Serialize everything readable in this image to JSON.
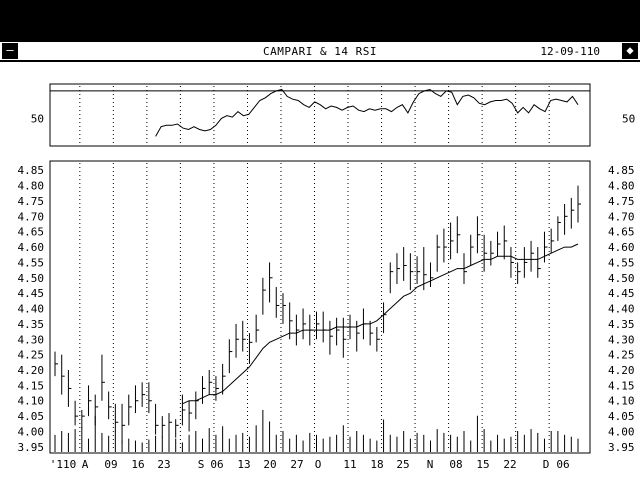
{
  "window": {
    "title": "CAMPARI & 14 RSI",
    "date": "12-09-110",
    "menu_icon": "minus-box-icon",
    "max_icon": "diamond-box-icon"
  },
  "colors": {
    "background": "#ffffff",
    "ink": "#000000",
    "frame": "#000000"
  },
  "chart_data": [
    {
      "type": "line",
      "title": "",
      "ylabel_ticks": [
        "50"
      ],
      "ref_levels": [
        70
      ],
      "series": [
        {
          "values": [
            37,
            44,
            45,
            45,
            46,
            43,
            42,
            44,
            42,
            41,
            42,
            45,
            50,
            52,
            51,
            55,
            52,
            53,
            58,
            63,
            65,
            68,
            70,
            71,
            66,
            64,
            63,
            60,
            58,
            62,
            60,
            57,
            59,
            58,
            56,
            58,
            59,
            56,
            55,
            57,
            56,
            57,
            57,
            55,
            58,
            60,
            54,
            62,
            68,
            70,
            71,
            68,
            66,
            70,
            69,
            60,
            66,
            67,
            65,
            61,
            60,
            62,
            63,
            63,
            64,
            61,
            54,
            58,
            54,
            60,
            57,
            55,
            63,
            64,
            63,
            62,
            66,
            60
          ]
        }
      ]
    },
    {
      "type": "bar",
      "subtype": "ohlc-with-moving-average-and-volume",
      "title": "",
      "yticks": [
        "4.85",
        "4.80",
        "4.75",
        "4.70",
        "4.65",
        "4.60",
        "4.55",
        "4.50",
        "4.45",
        "4.40",
        "4.35",
        "4.30",
        "4.25",
        "4.20",
        "4.15",
        "4.10",
        "4.05",
        "4.00",
        "3.95"
      ],
      "ylim": [
        3.93,
        4.88
      ],
      "xtick_labels": [
        "'110",
        "A",
        "09",
        "16",
        "23",
        "S",
        "06",
        "13",
        "20",
        "27",
        "O",
        "11",
        "18",
        "25",
        "N",
        "08",
        "15",
        "22",
        "D",
        "06"
      ],
      "series": [
        {
          "name": "high",
          "values": [
            4.26,
            4.25,
            4.2,
            4.1,
            4.07,
            4.15,
            4.12,
            4.25,
            4.13,
            4.09,
            4.09,
            4.12,
            4.15,
            4.16,
            4.16,
            4.09,
            4.05,
            4.06,
            4.04,
            4.12,
            4.1,
            4.13,
            4.18,
            4.2,
            4.18,
            4.22,
            4.3,
            4.35,
            4.36,
            4.32,
            4.38,
            4.5,
            4.55,
            4.47,
            4.45,
            4.42,
            4.38,
            4.4,
            4.38,
            4.39,
            4.39,
            4.36,
            4.37,
            4.37,
            4.38,
            4.36,
            4.4,
            4.36,
            4.34,
            4.42,
            4.55,
            4.58,
            4.6,
            4.58,
            4.57,
            4.6,
            4.55,
            4.64,
            4.66,
            4.68,
            4.7,
            4.58,
            4.64,
            4.7,
            4.64,
            4.62,
            4.65,
            4.67,
            4.6,
            4.55,
            4.6,
            4.62,
            4.6,
            4.65,
            4.66,
            4.7,
            4.74,
            4.76,
            4.8
          ]
        },
        {
          "name": "low",
          "values": [
            4.18,
            4.12,
            4.08,
            4.02,
            4.01,
            4.05,
            4.02,
            4.1,
            4.04,
            4.0,
            3.96,
            4.02,
            4.06,
            4.08,
            4.06,
            3.99,
            3.98,
            3.99,
            3.98,
            4.02,
            4.0,
            4.04,
            4.09,
            4.12,
            4.1,
            4.12,
            4.19,
            4.24,
            4.26,
            4.22,
            4.29,
            4.38,
            4.42,
            4.37,
            4.35,
            4.3,
            4.28,
            4.3,
            4.28,
            4.3,
            4.29,
            4.25,
            4.28,
            4.24,
            4.3,
            4.26,
            4.3,
            4.28,
            4.26,
            4.32,
            4.45,
            4.48,
            4.49,
            4.46,
            4.48,
            4.46,
            4.47,
            4.52,
            4.55,
            4.56,
            4.58,
            4.48,
            4.54,
            4.58,
            4.52,
            4.54,
            4.57,
            4.56,
            4.5,
            4.48,
            4.5,
            4.52,
            4.5,
            4.55,
            4.58,
            4.62,
            4.64,
            4.66,
            4.68
          ]
        },
        {
          "name": "close",
          "values": [
            4.22,
            4.18,
            4.14,
            4.05,
            4.05,
            4.1,
            4.08,
            4.16,
            4.08,
            4.03,
            4.02,
            4.08,
            4.1,
            4.12,
            4.1,
            4.02,
            4.02,
            4.03,
            4.02,
            4.07,
            4.06,
            4.1,
            4.14,
            4.16,
            4.14,
            4.18,
            4.26,
            4.3,
            4.3,
            4.29,
            4.33,
            4.46,
            4.5,
            4.41,
            4.41,
            4.36,
            4.33,
            4.35,
            4.33,
            4.35,
            4.33,
            4.31,
            4.33,
            4.3,
            4.34,
            4.32,
            4.35,
            4.32,
            4.3,
            4.38,
            4.52,
            4.53,
            4.54,
            4.52,
            4.52,
            4.51,
            4.5,
            4.6,
            4.6,
            4.62,
            4.64,
            4.52,
            4.6,
            4.64,
            4.58,
            4.58,
            4.61,
            4.62,
            4.55,
            4.52,
            4.55,
            4.58,
            4.53,
            4.6,
            4.62,
            4.68,
            4.7,
            4.72,
            4.74
          ]
        },
        {
          "name": "moving_average",
          "values": [
            null,
            null,
            null,
            null,
            null,
            null,
            null,
            null,
            null,
            null,
            null,
            null,
            null,
            null,
            null,
            null,
            null,
            null,
            null,
            4.09,
            4.1,
            4.1,
            4.11,
            4.12,
            4.12,
            4.13,
            4.15,
            4.17,
            4.19,
            4.21,
            4.24,
            4.27,
            4.29,
            4.3,
            4.31,
            4.32,
            4.32,
            4.33,
            4.33,
            4.33,
            4.33,
            4.33,
            4.34,
            4.34,
            4.34,
            4.34,
            4.35,
            4.35,
            4.36,
            4.38,
            4.4,
            4.42,
            4.44,
            4.45,
            4.47,
            4.48,
            4.49,
            4.5,
            4.51,
            4.52,
            4.53,
            4.53,
            4.54,
            4.55,
            4.56,
            4.56,
            4.57,
            4.57,
            4.57,
            4.56,
            4.56,
            4.56,
            4.56,
            4.57,
            4.58,
            4.59,
            4.6,
            4.6,
            4.61
          ]
        },
        {
          "name": "volume",
          "values": [
            18,
            22,
            20,
            24,
            26,
            14,
            38,
            20,
            17,
            22,
            12,
            14,
            12,
            10,
            13,
            17,
            16,
            20,
            14,
            10,
            18,
            22,
            14,
            25,
            18,
            27,
            14,
            18,
            20,
            16,
            28,
            44,
            32,
            18,
            22,
            14,
            18,
            12,
            20,
            18,
            14,
            16,
            18,
            28,
            16,
            22,
            18,
            14,
            12,
            34,
            18,
            16,
            22,
            14,
            20,
            18,
            12,
            24,
            20,
            18,
            16,
            22,
            12,
            38,
            24,
            12,
            18,
            14,
            16,
            22,
            18,
            24,
            20,
            14,
            22,
            22,
            18,
            16,
            14
          ]
        }
      ]
    }
  ]
}
